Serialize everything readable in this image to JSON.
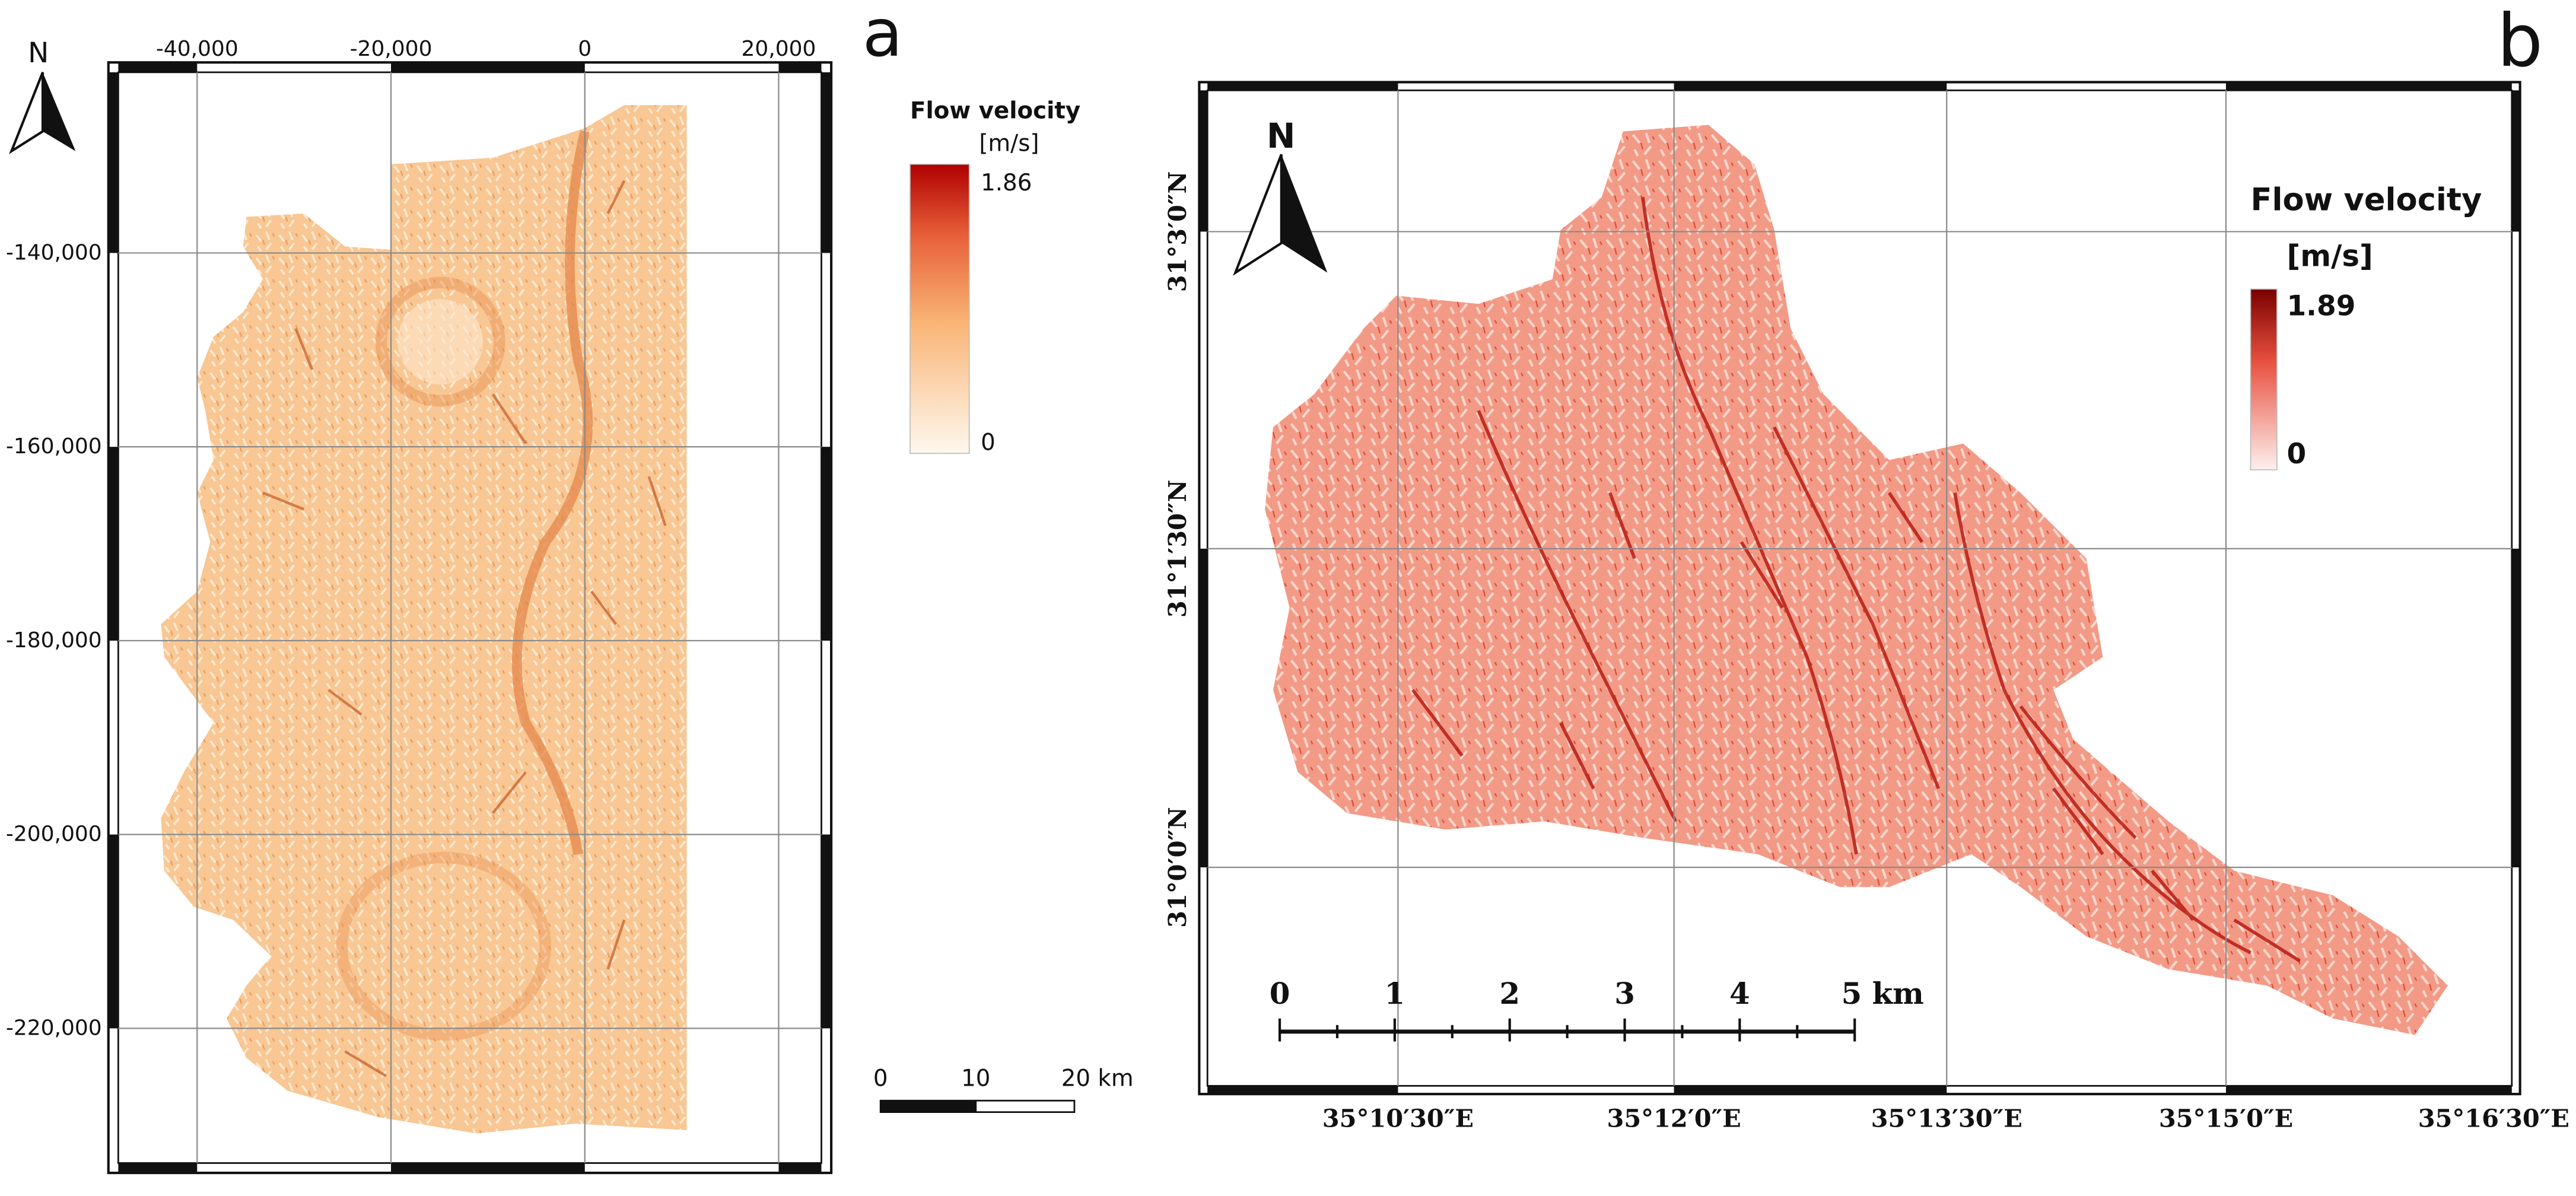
{
  "panel_a": {
    "panel_label": "a",
    "north_label": "N",
    "x_ticks": [
      "-40,000",
      "-20,000",
      "0",
      "20,000"
    ],
    "y_ticks": [
      "-140,000",
      "-160,000",
      "-180,000",
      "-200,000",
      "-220,000"
    ],
    "legend": {
      "title": "Flow velocity",
      "unit": "[m/s]",
      "max": "1.86",
      "min": "0",
      "color_low": "#fdf4e6",
      "color_mid": "#f7a35c",
      "color_high": "#b00000"
    },
    "scale_bar": {
      "labels": [
        "0",
        "10",
        "20 km"
      ]
    }
  },
  "panel_b": {
    "panel_label": "b",
    "north_label": "N",
    "lat_ticks": [
      "31°3′0″N",
      "31°1′30″N",
      "31°0′0″N"
    ],
    "lon_ticks": [
      "35°10′30″E",
      "35°12′0″E",
      "35°13′30″E",
      "35°15′0″E",
      "35°16′30″E"
    ],
    "legend": {
      "title": "Flow velocity",
      "unit": "[m/s]",
      "max": "1.89",
      "min": "0",
      "color_low": "#fbecea",
      "color_high": "#8b0000"
    },
    "scale_bar": {
      "labels": [
        "0",
        "1",
        "2",
        "3",
        "4",
        "5 km"
      ]
    },
    "fill_color": "#ef8f7a"
  }
}
